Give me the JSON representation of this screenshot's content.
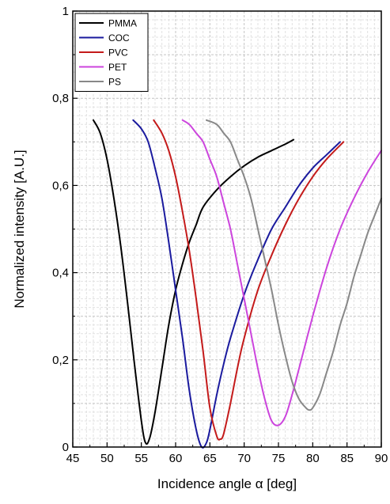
{
  "chart_data": {
    "type": "line",
    "xlabel": "Incidence angle α [deg]",
    "ylabel": "Normalized intensity [A.U.]",
    "xlim": [
      45,
      90
    ],
    "ylim": [
      0,
      1
    ],
    "x_ticks": [
      "45",
      "50",
      "55",
      "60",
      "65",
      "70",
      "75",
      "80",
      "85",
      "90"
    ],
    "y_ticks": [
      "0",
      "0,2",
      "0,4",
      "0,6",
      "0,8",
      "1"
    ],
    "grid": true,
    "legend_position": "top-left",
    "series": [
      {
        "name": "PMMA",
        "color": "#000000",
        "x": [
          48,
          49,
          50,
          51,
          52,
          53,
          54,
          55,
          55.6,
          56.2,
          57,
          58,
          59,
          60,
          61,
          62,
          63,
          64,
          66,
          68,
          70,
          72,
          74,
          76,
          77.2
        ],
        "y": [
          0.75,
          0.72,
          0.66,
          0.57,
          0.46,
          0.33,
          0.19,
          0.06,
          0.01,
          0.02,
          0.08,
          0.18,
          0.28,
          0.36,
          0.42,
          0.47,
          0.51,
          0.55,
          0.59,
          0.62,
          0.645,
          0.665,
          0.68,
          0.695,
          0.705
        ]
      },
      {
        "name": "COC",
        "color": "#1a1a9e",
        "x": [
          53.8,
          55,
          56,
          57,
          58,
          59,
          60,
          61,
          62,
          63,
          63.8,
          64.5,
          65,
          66,
          67,
          68,
          70,
          72,
          74,
          76,
          78,
          80,
          82,
          84
        ],
        "y": [
          0.75,
          0.73,
          0.7,
          0.64,
          0.57,
          0.47,
          0.36,
          0.25,
          0.13,
          0.04,
          0.0,
          0.01,
          0.04,
          0.12,
          0.19,
          0.25,
          0.35,
          0.43,
          0.5,
          0.55,
          0.6,
          0.64,
          0.67,
          0.7
        ]
      },
      {
        "name": "PVC",
        "color": "#c41a1a",
        "x": [
          56.8,
          58,
          59,
          60,
          61,
          62,
          63,
          64,
          65,
          66,
          66.5,
          67,
          68,
          69,
          70,
          72,
          74,
          76,
          78,
          80,
          82,
          84.5
        ],
        "y": [
          0.75,
          0.72,
          0.68,
          0.62,
          0.54,
          0.45,
          0.34,
          0.22,
          0.09,
          0.025,
          0.018,
          0.03,
          0.1,
          0.18,
          0.25,
          0.36,
          0.44,
          0.51,
          0.57,
          0.62,
          0.66,
          0.7
        ]
      },
      {
        "name": "PET",
        "color": "#cc44dd",
        "x": [
          61,
          62,
          63,
          64,
          65,
          66,
          67,
          68,
          69,
          70,
          71,
          72,
          73,
          74,
          75,
          76,
          77,
          78,
          80,
          82,
          84,
          86,
          88,
          90
        ],
        "y": [
          0.75,
          0.74,
          0.72,
          0.7,
          0.66,
          0.62,
          0.56,
          0.5,
          0.42,
          0.34,
          0.26,
          0.18,
          0.11,
          0.06,
          0.05,
          0.07,
          0.12,
          0.18,
          0.3,
          0.41,
          0.5,
          0.57,
          0.63,
          0.68
        ]
      },
      {
        "name": "PS",
        "color": "#888888",
        "x": [
          64.5,
          66,
          67,
          68,
          69,
          70,
          71,
          72,
          73,
          74,
          75,
          76,
          77,
          78,
          79,
          79.5,
          80,
          81,
          82,
          83,
          84,
          85,
          86,
          87,
          88,
          89,
          90
        ],
        "y": [
          0.75,
          0.74,
          0.72,
          0.7,
          0.66,
          0.62,
          0.57,
          0.5,
          0.43,
          0.36,
          0.28,
          0.21,
          0.15,
          0.11,
          0.09,
          0.085,
          0.09,
          0.12,
          0.17,
          0.22,
          0.28,
          0.33,
          0.39,
          0.44,
          0.49,
          0.53,
          0.57
        ]
      }
    ]
  }
}
